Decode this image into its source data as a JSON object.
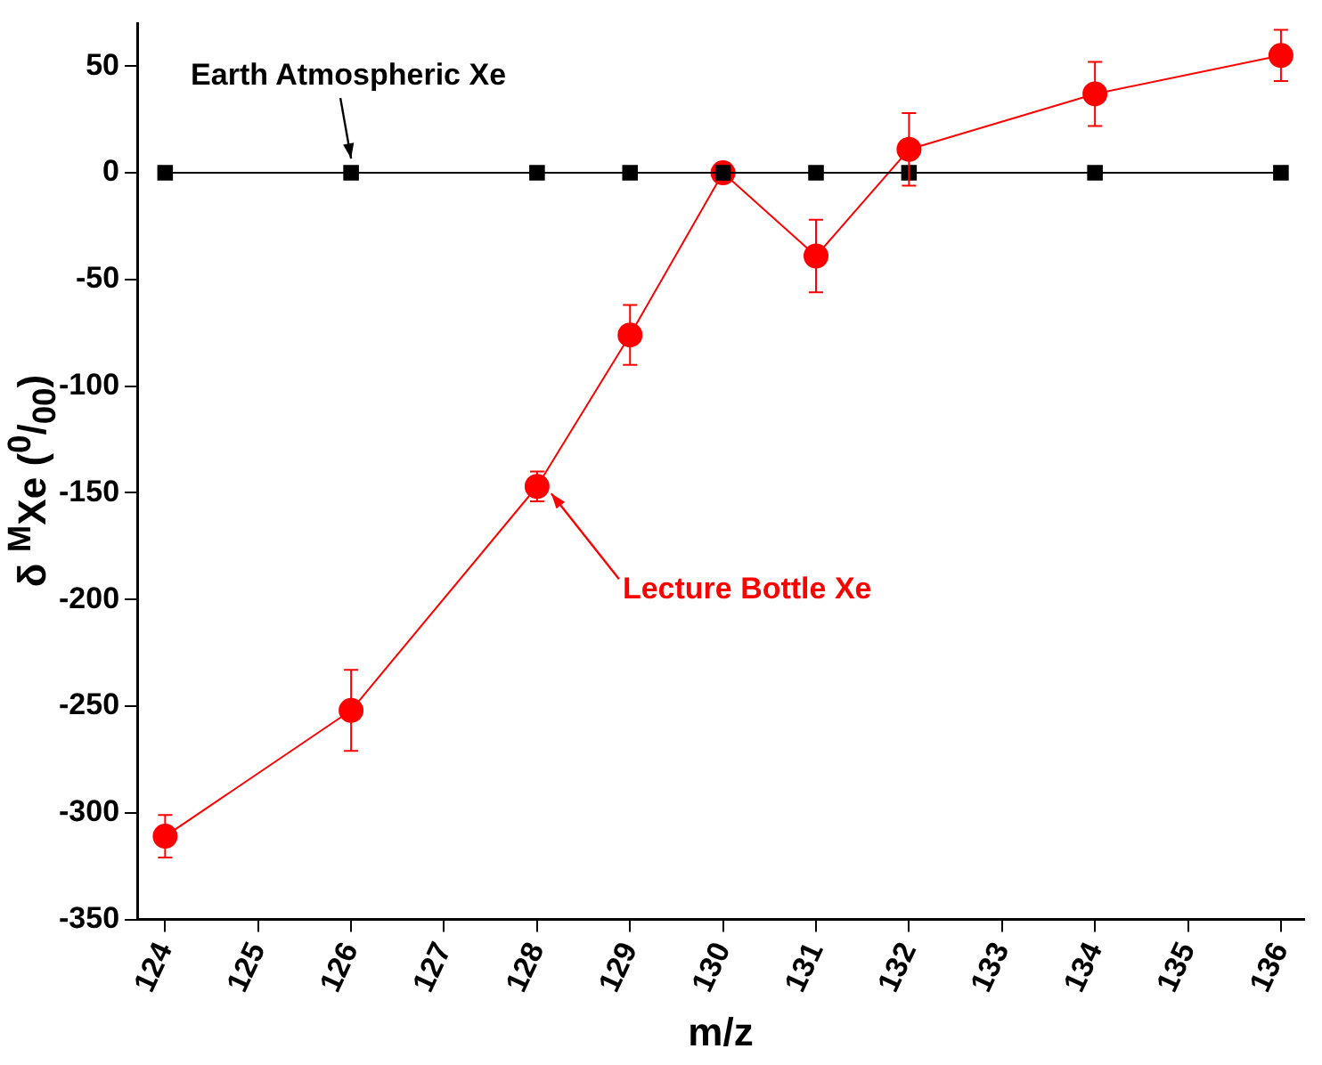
{
  "chart_data": {
    "type": "line",
    "xlabel": "m/z",
    "ylabel": "δ $^{M}$Xe ($^{0}$/$_{00}$)",
    "x": [
      124,
      126,
      128,
      129,
      130,
      131,
      132,
      134,
      136
    ],
    "series": [
      {
        "color": "#000000",
        "marker": "square",
        "values": [
          0,
          0,
          0,
          0,
          0,
          0,
          0,
          0,
          0
        ]
      },
      {
        "color": "#ff0000",
        "marker": "circle",
        "values": [
          -311,
          -252,
          -147,
          -76,
          0,
          -39,
          11,
          37,
          55
        ],
        "errors": [
          10,
          19,
          7,
          14,
          null,
          17,
          17,
          15,
          12
        ]
      }
    ],
    "annotations": [
      {
        "text": "Earth Atmospheric Xe",
        "x": 126,
        "y": 0
      },
      {
        "text": "Lecture Bottle Xe",
        "x": 128,
        "y": -147
      }
    ],
    "xlim": [
      123.7,
      136.25
    ],
    "xticks": [
      124,
      125,
      126,
      127,
      128,
      129,
      130,
      131,
      132,
      133,
      134,
      135,
      136
    ],
    "ylim": [
      -350,
      70
    ],
    "yticks": [
      -350,
      -300,
      -250,
      -200,
      -150,
      -100,
      -50,
      0,
      50
    ],
    "grid": false,
    "legend": false,
    "line_style": "solid"
  }
}
